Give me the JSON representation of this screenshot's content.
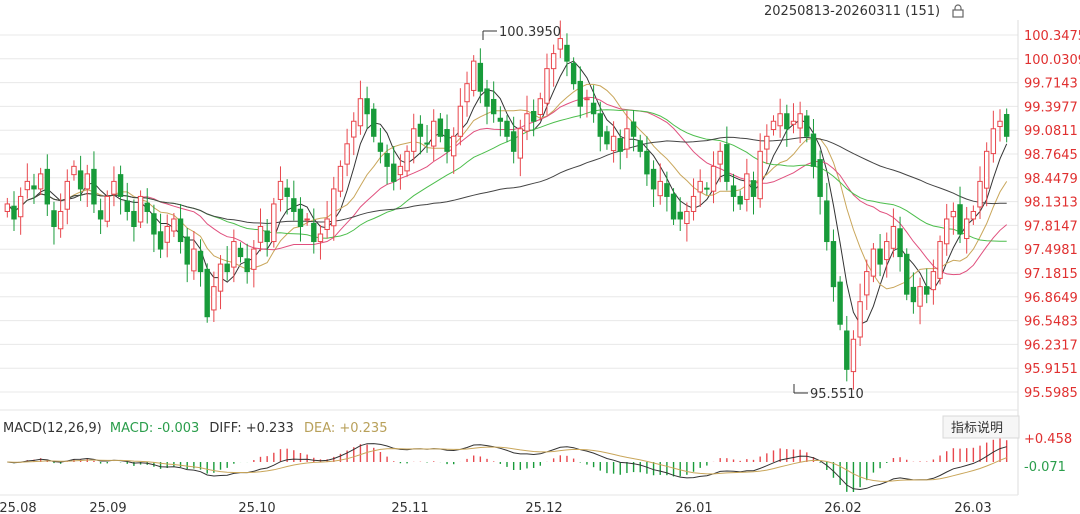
{
  "header": {
    "range": "20250813-20260311 (151)",
    "lock_icon": "lock-icon"
  },
  "indicator_button": "指标说明",
  "colors": {
    "up": "#e8474d",
    "down": "#189b3a",
    "ma5": "#333333",
    "ma10": "#c9a65a",
    "ma20": "#e0507e",
    "ma30": "#4cbe4c",
    "ma60": "#444444",
    "axis_text": "#e03030",
    "grid": "#e8e8e8"
  },
  "chart_data": [
    {
      "type": "candlestick",
      "name": "main",
      "y_ticks": [
        "100.3475",
        "100.0309",
        "99.7143",
        "99.3977",
        "99.0811",
        "98.7645",
        "98.4479",
        "98.1313",
        "97.8147",
        "97.4981",
        "97.1815",
        "96.8649",
        "96.5483",
        "96.2317",
        "95.9151",
        "95.5985"
      ],
      "ylim": [
        95.5985,
        100.3475
      ],
      "x_ticks": [
        "25.08",
        "25.09",
        "25.10",
        "25.11",
        "25.12",
        "26.01",
        "26.02",
        "26.03"
      ],
      "annotations": [
        {
          "label": "100.3950",
          "kind": "max"
        },
        {
          "label": "95.5510",
          "kind": "min"
        }
      ],
      "close": [
        98.1,
        97.9,
        98.2,
        98.4,
        98.3,
        98.5,
        98.1,
        97.8,
        98.0,
        98.4,
        98.6,
        98.3,
        98.5,
        98.1,
        97.9,
        98.2,
        98.4,
        98.2,
        98.0,
        97.8,
        98.2,
        98.0,
        97.7,
        97.5,
        97.8,
        97.9,
        97.6,
        97.3,
        97.5,
        97.2,
        96.6,
        97.0,
        97.3,
        97.2,
        97.6,
        97.4,
        97.2,
        97.5,
        97.8,
        97.6,
        98.1,
        98.4,
        98.2,
        98.0,
        97.8,
        97.9,
        97.6,
        97.7,
        97.9,
        98.3,
        98.6,
        98.9,
        99.2,
        99.5,
        99.3,
        99.0,
        98.8,
        98.6,
        98.4,
        98.6,
        98.8,
        99.1,
        99.0,
        98.9,
        99.2,
        99.0,
        98.8,
        99.0,
        99.4,
        99.7,
        100.0,
        99.6,
        99.4,
        99.3,
        99.2,
        99.0,
        98.8,
        99.1,
        99.3,
        99.2,
        99.5,
        99.9,
        100.1,
        100.3,
        100.0,
        99.7,
        99.4,
        99.5,
        99.3,
        99.0,
        98.9,
        99.0,
        98.8,
        99.1,
        99.0,
        98.8,
        98.5,
        98.3,
        98.4,
        98.2,
        97.9,
        97.9,
        98.0,
        98.2,
        98.4,
        98.3,
        98.6,
        98.8,
        98.4,
        98.2,
        98.1,
        98.5,
        98.2,
        98.8,
        99.0,
        99.2,
        99.3,
        99.1,
        99.2,
        99.3,
        99.0,
        98.6,
        98.2,
        97.6,
        97.0,
        96.5,
        95.9,
        96.3,
        96.8,
        97.2,
        97.5,
        97.3,
        97.6,
        97.8,
        97.4,
        96.9,
        96.8,
        97.0,
        96.9,
        97.2,
        97.6,
        97.9,
        98.0,
        97.7,
        97.9,
        98.0,
        98.4,
        98.8,
        99.1,
        99.2,
        99.0
      ],
      "series": [
        {
          "name": "MA5"
        },
        {
          "name": "MA10"
        },
        {
          "name": "MA20"
        },
        {
          "name": "MA30"
        },
        {
          "name": "MA60"
        }
      ]
    },
    {
      "type": "bar+line",
      "name": "macd",
      "params": "MACD(12,26,9)",
      "macd_label": "MACD: -0.003",
      "diff_label": "DIFF: +0.233",
      "dea_label": "DEA: +0.235",
      "y_ticks": [
        "+0.458",
        "-0.071"
      ]
    }
  ]
}
